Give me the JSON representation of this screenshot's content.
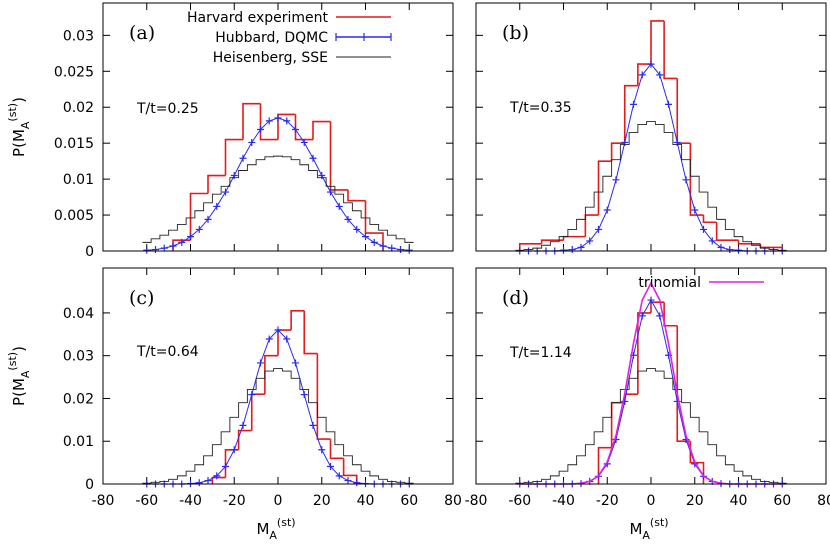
{
  "chart_data": [
    {
      "type": "line",
      "label": "(a)",
      "annotation": "T/t=0.25",
      "ylabel": [
        "P(M",
        "A",
        "(st)",
        ")"
      ],
      "xlim": [
        -80,
        80
      ],
      "ylim": [
        0,
        0.0345
      ],
      "xticks": [
        -80,
        -60,
        -40,
        -20,
        0,
        20,
        40,
        60,
        80
      ],
      "yticks": [
        0,
        0.005,
        0.01,
        0.015,
        0.02,
        0.025,
        0.03
      ],
      "legend": "upper right",
      "series": [
        {
          "name": "Harvard experiment",
          "color": "#e41a1c",
          "style": "histogram",
          "bins": [
            -48,
            -40,
            -32,
            -24,
            -16,
            -8,
            0,
            8,
            16,
            24,
            32,
            40,
            48
          ],
          "values": [
            0.0015,
            0.008,
            0.0105,
            0.0155,
            0.0205,
            0.0155,
            0.019,
            0.0155,
            0.018,
            0.0085,
            0.007,
            0.0025
          ]
        },
        {
          "name": "Hubbard, DQMC",
          "color": "#2a2af0",
          "style": "points",
          "x": [
            -60,
            -56,
            -52,
            -48,
            -44,
            -40,
            -36,
            -32,
            -28,
            -24,
            -20,
            -16,
            -12,
            -8,
            -4,
            0,
            4,
            8,
            12,
            16,
            20,
            24,
            28,
            32,
            36,
            40,
            44,
            48,
            52,
            56,
            60
          ],
          "values": [
            0.0001,
            0.0002,
            0.0004,
            0.0007,
            0.0012,
            0.002,
            0.003,
            0.0044,
            0.0062,
            0.0082,
            0.0105,
            0.0129,
            0.0151,
            0.0169,
            0.0181,
            0.0185,
            0.0181,
            0.0169,
            0.0151,
            0.0129,
            0.0105,
            0.0082,
            0.0062,
            0.0044,
            0.003,
            0.002,
            0.0012,
            0.0007,
            0.0004,
            0.0002,
            0.0001
          ]
        },
        {
          "name": "Heisenberg, SSE",
          "color": "#222222",
          "style": "steps",
          "x": [
            -60,
            -56,
            -52,
            -48,
            -44,
            -40,
            -36,
            -32,
            -28,
            -24,
            -20,
            -16,
            -12,
            -8,
            -4,
            0,
            4,
            8,
            12,
            16,
            20,
            24,
            28,
            32,
            36,
            40,
            44,
            48,
            52,
            56,
            60
          ],
          "values": [
            0.0012,
            0.0017,
            0.0022,
            0.0029,
            0.0037,
            0.0046,
            0.0056,
            0.0067,
            0.0079,
            0.009,
            0.0102,
            0.0112,
            0.012,
            0.0127,
            0.0131,
            0.0132,
            0.0131,
            0.0127,
            0.012,
            0.0112,
            0.0102,
            0.009,
            0.0079,
            0.0067,
            0.0056,
            0.0046,
            0.0037,
            0.0029,
            0.0022,
            0.0017,
            0.0012
          ]
        }
      ]
    },
    {
      "type": "line",
      "label": "(b)",
      "annotation": "T/t=0.35",
      "xlim": [
        -80,
        80
      ],
      "ylim": [
        0,
        0.0345
      ],
      "xticks": [
        -80,
        -60,
        -40,
        -20,
        0,
        20,
        40,
        60,
        80
      ],
      "yticks": [
        0,
        0.005,
        0.01,
        0.015,
        0.02,
        0.025,
        0.03
      ],
      "series": [
        {
          "color": "#e41a1c",
          "style": "histogram",
          "bins": [
            -60,
            -50,
            -40,
            -30,
            -24,
            -18,
            -12,
            -6,
            0,
            6,
            12,
            18,
            24,
            30,
            40,
            50,
            60
          ],
          "values": [
            0.001,
            0.0015,
            0.002,
            0.005,
            0.0125,
            0.015,
            0.023,
            0.026,
            0.032,
            0.024,
            0.015,
            0.005,
            0.004,
            0.0015,
            0.001,
            0.0005
          ]
        },
        {
          "color": "#2a2af0",
          "style": "points",
          "x": [
            -60,
            -56,
            -52,
            -48,
            -44,
            -40,
            -36,
            -32,
            -28,
            -24,
            -20,
            -16,
            -12,
            -8,
            -4,
            0,
            4,
            8,
            12,
            16,
            20,
            24,
            28,
            32,
            36,
            40,
            44,
            48,
            52,
            56,
            60
          ],
          "values": [
            0,
            0,
            0,
            0,
            0,
            0.0001,
            0.0002,
            0.0005,
            0.0014,
            0.003,
            0.0057,
            0.0099,
            0.0151,
            0.0204,
            0.0245,
            0.026,
            0.0245,
            0.0204,
            0.0151,
            0.0099,
            0.0057,
            0.003,
            0.0014,
            0.0005,
            0.0002,
            0.0001,
            0,
            0,
            0,
            0,
            0
          ]
        },
        {
          "color": "#222222",
          "style": "steps",
          "x": [
            -60,
            -56,
            -52,
            -48,
            -44,
            -40,
            -36,
            -32,
            -28,
            -24,
            -20,
            -16,
            -12,
            -8,
            -4,
            0,
            4,
            8,
            12,
            16,
            20,
            24,
            28,
            32,
            36,
            40,
            44,
            48,
            52,
            56,
            60
          ],
          "values": [
            0.0001,
            0.0002,
            0.0004,
            0.0008,
            0.0013,
            0.002,
            0.003,
            0.0044,
            0.0061,
            0.0082,
            0.0104,
            0.0127,
            0.0148,
            0.0165,
            0.0176,
            0.018,
            0.0176,
            0.0165,
            0.0148,
            0.0127,
            0.0104,
            0.0082,
            0.0061,
            0.0044,
            0.003,
            0.002,
            0.0013,
            0.0008,
            0.0004,
            0.0002,
            0.0001
          ]
        }
      ]
    },
    {
      "type": "line",
      "label": "(c)",
      "annotation": "T/t=0.64",
      "ylabel": [
        "P(M",
        "A",
        "(st)",
        ")"
      ],
      "xlabel": [
        "M",
        "A",
        "(st)"
      ],
      "xlim": [
        -80,
        80
      ],
      "ylim": [
        0,
        0.0505
      ],
      "xticks": [
        -80,
        -60,
        -40,
        -20,
        0,
        20,
        40,
        60,
        80
      ],
      "yticks": [
        0,
        0.01,
        0.02,
        0.03,
        0.04
      ],
      "series": [
        {
          "color": "#e41a1c",
          "style": "histogram",
          "bins": [
            -30,
            -24,
            -18,
            -12,
            -6,
            0,
            6,
            12,
            18,
            24,
            30,
            36
          ],
          "values": [
            0.0015,
            0.008,
            0.0125,
            0.021,
            0.03,
            0.036,
            0.0405,
            0.0305,
            0.0105,
            0.006,
            0.002
          ]
        },
        {
          "color": "#2a2af0",
          "style": "points",
          "x": [
            -60,
            -56,
            -52,
            -48,
            -44,
            -40,
            -36,
            -32,
            -28,
            -24,
            -20,
            -16,
            -12,
            -8,
            -4,
            0,
            4,
            8,
            12,
            16,
            20,
            24,
            28,
            32,
            36,
            40,
            44,
            48,
            52,
            56,
            60
          ],
          "values": [
            0,
            0,
            0,
            0,
            0,
            0.0001,
            0.0003,
            0.0008,
            0.0019,
            0.0041,
            0.008,
            0.0137,
            0.0209,
            0.0283,
            0.0339,
            0.036,
            0.0339,
            0.0283,
            0.0209,
            0.0137,
            0.008,
            0.0041,
            0.0019,
            0.0008,
            0.0003,
            0.0001,
            0,
            0,
            0,
            0,
            0
          ]
        },
        {
          "color": "#222222",
          "style": "steps",
          "x": [
            -60,
            -56,
            -52,
            -48,
            -44,
            -40,
            -36,
            -32,
            -28,
            -24,
            -20,
            -16,
            -12,
            -8,
            -4,
            0,
            4,
            8,
            12,
            16,
            20,
            24,
            28,
            32,
            36,
            40,
            44,
            48,
            52,
            56,
            60
          ],
          "values": [
            0.0002,
            0.0004,
            0.0006,
            0.0011,
            0.0019,
            0.003,
            0.0045,
            0.0066,
            0.0092,
            0.0122,
            0.0156,
            0.019,
            0.0221,
            0.0247,
            0.0264,
            0.027,
            0.0264,
            0.0247,
            0.0221,
            0.019,
            0.0156,
            0.0122,
            0.0092,
            0.0066,
            0.0045,
            0.003,
            0.0019,
            0.0011,
            0.0006,
            0.0004,
            0.0002
          ]
        }
      ]
    },
    {
      "type": "line",
      "label": "(d)",
      "annotation": "T/t=1.14",
      "xlabel": [
        "M",
        "A",
        "(st)"
      ],
      "xlim": [
        -80,
        80
      ],
      "ylim": [
        0,
        0.0505
      ],
      "xticks": [
        -80,
        -60,
        -40,
        -20,
        0,
        20,
        40,
        60,
        80
      ],
      "yticks": [
        0,
        0.01,
        0.02,
        0.03,
        0.04
      ],
      "legend": "upper right",
      "series": [
        {
          "color": "#e41a1c",
          "style": "histogram",
          "bins": [
            -24,
            -18,
            -12,
            -6,
            0,
            6,
            12,
            18,
            24
          ],
          "values": [
            0.0085,
            0.019,
            0.021,
            0.04,
            0.0425,
            0.037,
            0.01,
            0.005
          ]
        },
        {
          "color": "#2a2af0",
          "style": "points",
          "x": [
            -60,
            -56,
            -52,
            -48,
            -44,
            -40,
            -36,
            -32,
            -28,
            -24,
            -20,
            -16,
            -12,
            -8,
            -4,
            0,
            4,
            8,
            12,
            16,
            20,
            24,
            28,
            32,
            36,
            40,
            44,
            48,
            52,
            56,
            60
          ],
          "values": [
            0,
            0,
            0,
            0,
            0,
            0,
            0,
            0.0001,
            0.0006,
            0.0018,
            0.0047,
            0.0104,
            0.0193,
            0.0301,
            0.0393,
            0.043,
            0.0393,
            0.0301,
            0.0193,
            0.0104,
            0.0047,
            0.0018,
            0.0006,
            0.0001,
            0,
            0,
            0,
            0,
            0,
            0,
            0
          ]
        },
        {
          "color": "#222222",
          "style": "steps",
          "x": [
            -60,
            -56,
            -52,
            -48,
            -44,
            -40,
            -36,
            -32,
            -28,
            -24,
            -20,
            -16,
            -12,
            -8,
            -4,
            0,
            4,
            8,
            12,
            16,
            20,
            24,
            28,
            32,
            36,
            40,
            44,
            48,
            52,
            56,
            60
          ],
          "values": [
            0.0002,
            0.0004,
            0.0006,
            0.0011,
            0.0019,
            0.003,
            0.0045,
            0.0066,
            0.0092,
            0.0122,
            0.0156,
            0.019,
            0.0221,
            0.0247,
            0.0264,
            0.027,
            0.0264,
            0.0247,
            0.0221,
            0.019,
            0.0156,
            0.0122,
            0.0092,
            0.0066,
            0.0045,
            0.003,
            0.0019,
            0.0011,
            0.0006,
            0.0004,
            0.0002
          ]
        },
        {
          "name": "trinomial",
          "color": "#e020e0",
          "style": "line",
          "x": [
            -60,
            -56,
            -52,
            -48,
            -44,
            -40,
            -36,
            -32,
            -28,
            -24,
            -20,
            -16,
            -12,
            -8,
            -4,
            0,
            4,
            8,
            12,
            16,
            20,
            24,
            28,
            32,
            36,
            40,
            44,
            48,
            52,
            56,
            60
          ],
          "values": [
            0,
            0,
            0,
            0,
            0,
            0,
            0,
            0.0002,
            0.0006,
            0.0019,
            0.0051,
            0.0113,
            0.0211,
            0.0329,
            0.043,
            0.047,
            0.043,
            0.0329,
            0.0211,
            0.0113,
            0.0051,
            0.0019,
            0.0006,
            0.0002,
            0,
            0,
            0,
            0,
            0,
            0,
            0
          ]
        }
      ]
    }
  ]
}
